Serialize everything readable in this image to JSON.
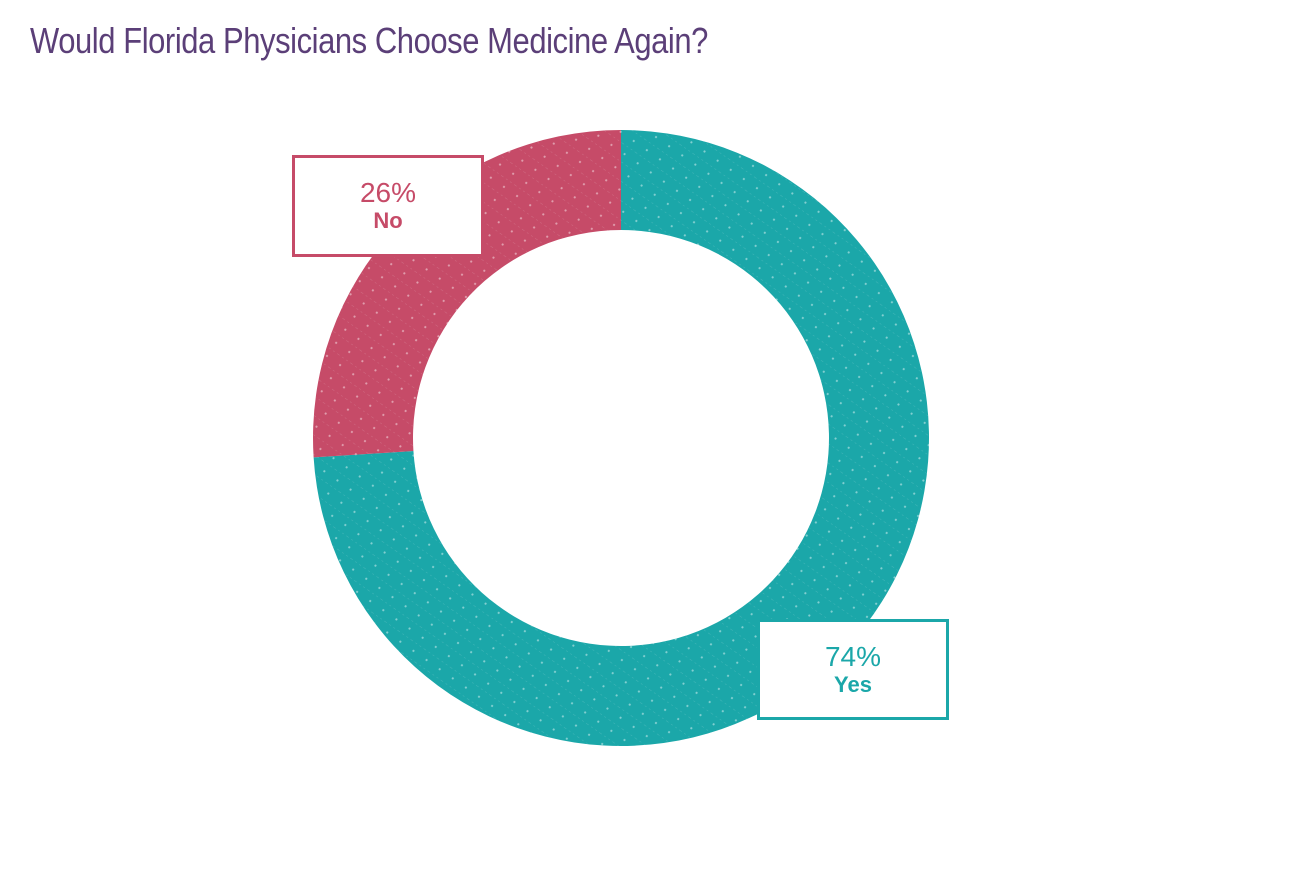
{
  "title": "Would Florida Physicians Choose Medicine Again?",
  "colors": {
    "title": "#5B3F78",
    "yes": "#1BA7A9",
    "no": "#C64B68"
  },
  "callouts": {
    "no": {
      "pct": "26%",
      "label": "No"
    },
    "yes": {
      "pct": "74%",
      "label": "Yes"
    }
  },
  "chart_data": {
    "type": "pie",
    "subtype": "donut",
    "title": "Would Florida Physicians Choose Medicine Again?",
    "categories": [
      "Yes",
      "No"
    ],
    "values": [
      74,
      26
    ],
    "unit": "%",
    "colors": [
      "#1BA7A9",
      "#C64B68"
    ],
    "labels": [
      "74% Yes",
      "26% No"
    ],
    "legend": "none (callout labels)"
  }
}
